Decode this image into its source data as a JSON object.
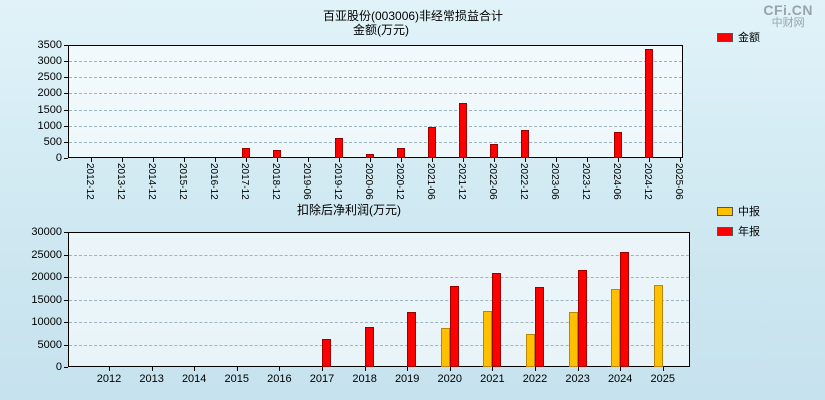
{
  "logo": {
    "main": "CFi.CN",
    "sub": "中财网"
  },
  "chart_data": [
    {
      "type": "bar",
      "title": "百亚股份(003006)非经常损益合计",
      "subtitle": "金额(万元)",
      "legend": [
        {
          "label": "金额",
          "color": "#ff0000"
        }
      ],
      "categories": [
        "2012-12",
        "2013-12",
        "2014-12",
        "2015-12",
        "2016-12",
        "2017-12",
        "2018-12",
        "2019-06",
        "2019-12",
        "2020-06",
        "2020-12",
        "2021-06",
        "2021-12",
        "2022-06",
        "2022-12",
        "2023-06",
        "2023-12",
        "2024-06",
        "2024-12",
        "2025-06"
      ],
      "values": [
        null,
        null,
        null,
        null,
        null,
        300,
        250,
        null,
        620,
        120,
        300,
        950,
        1700,
        430,
        870,
        null,
        null,
        790,
        3380,
        null
      ],
      "ylim": [
        0,
        3500
      ],
      "yticks": [
        0,
        500,
        1000,
        1500,
        2000,
        2500,
        3000,
        3500
      ],
      "grid": "dashed horizontal",
      "legend_position": "top-right"
    },
    {
      "type": "bar",
      "title": "扣除后净利润(万元)",
      "legend": [
        {
          "label": "中报",
          "color": "#ffc000"
        },
        {
          "label": "年报",
          "color": "#ff0000"
        }
      ],
      "categories": [
        "2012",
        "2013",
        "2014",
        "2015",
        "2016",
        "2017",
        "2018",
        "2019",
        "2020",
        "2021",
        "2022",
        "2023",
        "2024",
        "2025"
      ],
      "series": [
        {
          "name": "中报",
          "color": "#ffc000",
          "values": [
            null,
            null,
            null,
            null,
            null,
            null,
            null,
            null,
            8700,
            12400,
            7400,
            12300,
            17400,
            18300
          ]
        },
        {
          "name": "年报",
          "color": "#ff0000",
          "values": [
            null,
            null,
            null,
            null,
            null,
            6300,
            8800,
            12200,
            18000,
            21000,
            17800,
            21600,
            25500,
            null
          ]
        }
      ],
      "ylim": [
        0,
        30000
      ],
      "yticks": [
        0,
        5000,
        10000,
        15000,
        20000,
        25000,
        30000
      ],
      "grid": "dashed horizontal",
      "legend_position": "top-right"
    }
  ]
}
